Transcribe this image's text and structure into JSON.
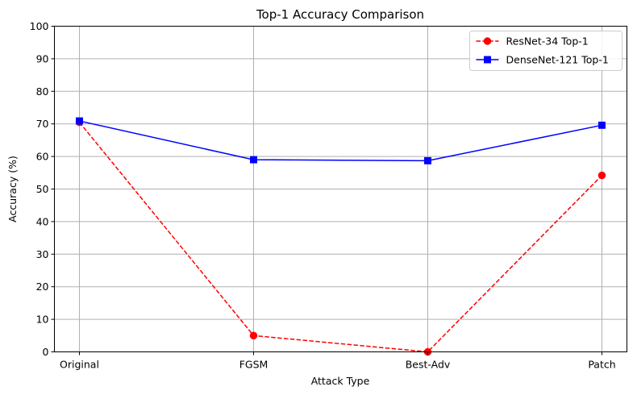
{
  "chart_data": {
    "type": "line",
    "title": "Top-1 Accuracy Comparison",
    "xlabel": "Attack Type",
    "ylabel": "Accuracy (%)",
    "categories": [
      "Original",
      "FGSM",
      "Best-Adv",
      "Patch"
    ],
    "ylim": [
      0,
      100
    ],
    "yticks": [
      0,
      10,
      20,
      30,
      40,
      50,
      60,
      70,
      80,
      90,
      100
    ],
    "grid": true,
    "legend_position": "top-right",
    "series": [
      {
        "name": "ResNet-34 Top-1",
        "values": [
          70.5,
          5.0,
          0.0,
          54.2
        ],
        "color": "#ff0000",
        "line_style": "dashed",
        "marker": "circle"
      },
      {
        "name": "DenseNet-121 Top-1",
        "values": [
          70.9,
          59.0,
          58.7,
          69.6
        ],
        "color": "#0000ff",
        "line_style": "solid",
        "marker": "square"
      }
    ]
  }
}
